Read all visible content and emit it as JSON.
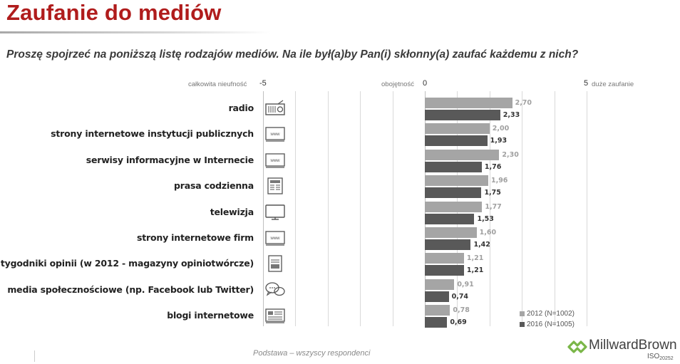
{
  "title": "Zaufanie do mediów",
  "question": "Proszę spojrzeć na poniższą listę rodzajów mediów. Na ile był(a)by Pan(i) skłonny(a) zaufać każdemu z nich?",
  "scale": {
    "left_word": "całkowita nieufność",
    "left_num": "-5",
    "mid_word": "obojętność",
    "mid_num": "0",
    "right_num": "5",
    "right_word": "duże zaufanie"
  },
  "footer": "Podstawa – wszyscy respondenci",
  "brand": {
    "name": "MillwardBrown",
    "iso": "ISO",
    "iso_num": "20252",
    "logo_color": "#7ab648"
  },
  "colors": {
    "title": "#b01c1c",
    "series_2012": "#a5a5a5",
    "series_2016": "#595959"
  },
  "chart_data": {
    "type": "bar",
    "orientation": "horizontal",
    "title": "",
    "xlim": [
      -5,
      5
    ],
    "x_ticks": [
      -5,
      0,
      5
    ],
    "grid": true,
    "legend_position": "bottom-right",
    "categories": [
      "radio",
      "strony internetowe instytucji publicznych",
      "serwisy informacyjne w Internecie",
      "prasa codzienna",
      "telewizja",
      "strony internetowe firm",
      "tygodniki opinii (w 2012 - magazyny opiniotwórcze)",
      "media społecznościowe (np. Facebook lub Twitter)",
      "blogi internetowe"
    ],
    "category_icons": [
      "radio-icon",
      "www-icon",
      "www-icon",
      "newspaper-icon",
      "tv-icon",
      "www-icon",
      "magazine-icon",
      "speech-bubbles-icon",
      "blog-icon"
    ],
    "series": [
      {
        "name": "2012 (N=1002)",
        "values": [
          2.7,
          2.0,
          2.3,
          1.96,
          1.77,
          1.6,
          1.21,
          0.91,
          0.78
        ],
        "labels": [
          "2,70",
          "2,00",
          "2,30",
          "1,96",
          "1,77",
          "1,60",
          "1,21",
          "0,91",
          "0,78"
        ]
      },
      {
        "name": "2016 (N=1005)",
        "values": [
          2.33,
          1.93,
          1.76,
          1.75,
          1.53,
          1.42,
          1.21,
          0.74,
          0.69
        ],
        "labels": [
          "2,33",
          "1,93",
          "1,76",
          "1,75",
          "1,53",
          "1,42",
          "1,21",
          "0,74",
          "0,69"
        ]
      }
    ]
  }
}
